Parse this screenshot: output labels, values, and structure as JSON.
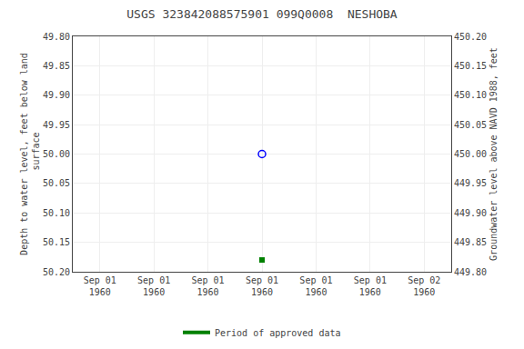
{
  "chart_data": {
    "type": "scatter",
    "title": "USGS 323842088575901 099Q0008  NESHOBA",
    "y_label": "Depth to water level, feet below land\n surface",
    "y2_label": "Groundwater level above NAVD 1988, feet",
    "categories": [
      "Sep 01\n1960",
      "Sep 01\n1960",
      "Sep 01\n1960",
      "Sep 01\n1960",
      "Sep 01\n1960",
      "Sep 01\n1960",
      "Sep 02\n1960"
    ],
    "ylim": [
      50.2,
      49.8
    ],
    "yticks": [
      {
        "value": 49.8,
        "label": "49.80"
      },
      {
        "value": 49.85,
        "label": "49.85"
      },
      {
        "value": 49.9,
        "label": "49.90"
      },
      {
        "value": 49.95,
        "label": "49.95"
      },
      {
        "value": 50.0,
        "label": "50.00"
      },
      {
        "value": 50.05,
        "label": "50.05"
      },
      {
        "value": 50.1,
        "label": "50.10"
      },
      {
        "value": 50.15,
        "label": "50.15"
      },
      {
        "value": 50.2,
        "label": "50.20"
      }
    ],
    "y2lim": [
      449.8,
      450.2
    ],
    "y2ticks": [
      {
        "value": 450.2,
        "label": "450.20"
      },
      {
        "value": 450.15,
        "label": "450.15"
      },
      {
        "value": 450.1,
        "label": "450.10"
      },
      {
        "value": 450.05,
        "label": "450.05"
      },
      {
        "value": 450.0,
        "label": "450.00"
      },
      {
        "value": 449.95,
        "label": "449.95"
      },
      {
        "value": 449.9,
        "label": "449.90"
      },
      {
        "value": 449.85,
        "label": "449.85"
      },
      {
        "value": 449.8,
        "label": "449.80"
      }
    ],
    "grid": true,
    "legend": "bottom",
    "series": [
      {
        "type": "scatter",
        "color": "blue",
        "marker": "circle-open",
        "values": [
          null,
          null,
          null,
          50.0,
          null,
          null,
          null
        ]
      },
      {
        "type": "scatter",
        "color": "green",
        "marker": "square",
        "values": [
          null,
          null,
          null,
          50.18,
          null,
          null,
          null
        ]
      },
      {
        "type": "line",
        "name": "Period of approved data",
        "color": "green",
        "values": [
          null,
          null,
          null,
          null,
          null,
          null,
          null
        ]
      }
    ]
  }
}
